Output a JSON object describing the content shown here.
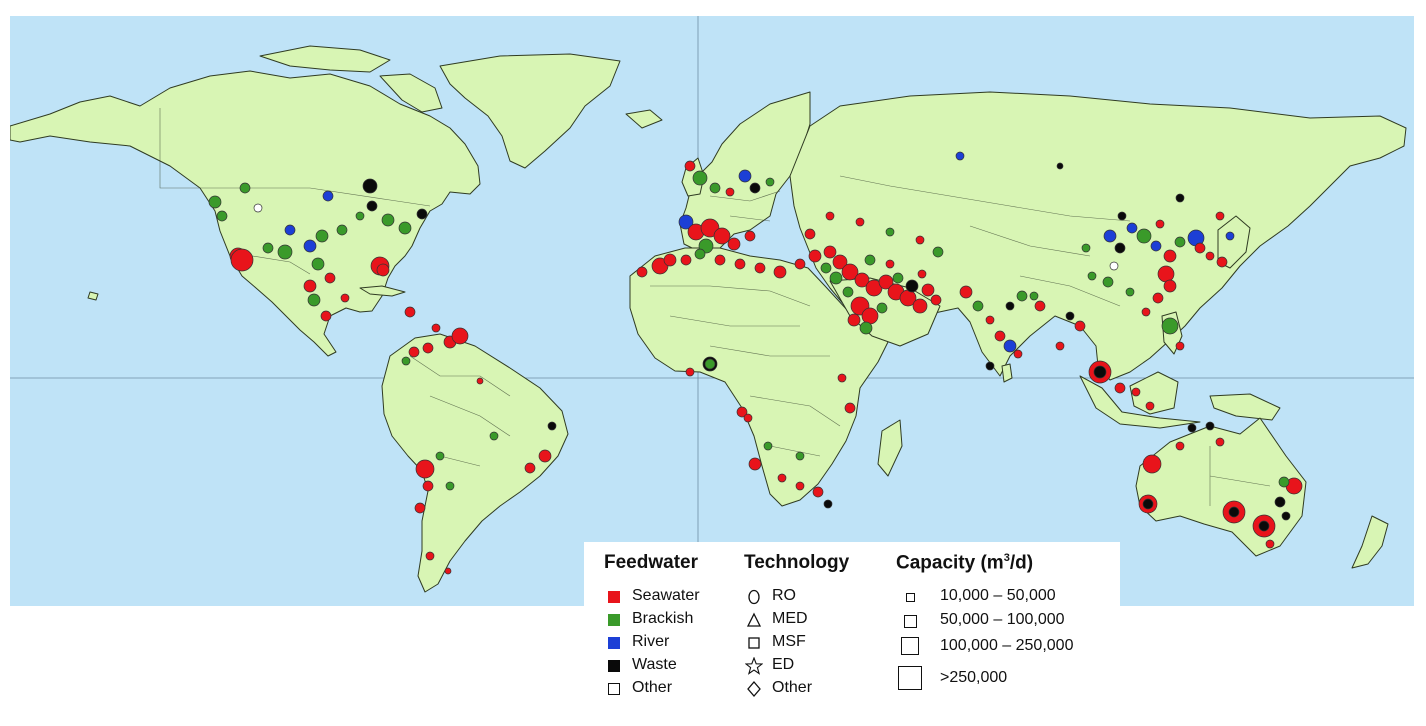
{
  "legend": {
    "feedwater": {
      "title": "Feedwater",
      "items": [
        {
          "label": "Seawater",
          "color": "#e8141b"
        },
        {
          "label": "Brackish",
          "color": "#3a9a2a"
        },
        {
          "label": "River",
          "color": "#1c3fd6"
        },
        {
          "label": "Waste",
          "color": "#0a0a0a"
        },
        {
          "label": "Other",
          "color": "#ffffff"
        }
      ]
    },
    "technology": {
      "title": "Technology",
      "items": [
        {
          "label": "RO",
          "icon": "circle-icon"
        },
        {
          "label": "MED",
          "icon": "triangle-icon"
        },
        {
          "label": "MSF",
          "icon": "square-icon"
        },
        {
          "label": "ED",
          "icon": "star-icon"
        },
        {
          "label": "Other",
          "icon": "diamond-icon"
        }
      ]
    },
    "capacity": {
      "title_main": "Capacity (m",
      "title_sup": "3",
      "title_tail": "/d)",
      "items": [
        {
          "label": "10,000 – 50,000"
        },
        {
          "label": "50,000 – 100,000"
        },
        {
          "label": "100,000 – 250,000"
        },
        {
          "label": ">250,000"
        }
      ]
    }
  }
}
